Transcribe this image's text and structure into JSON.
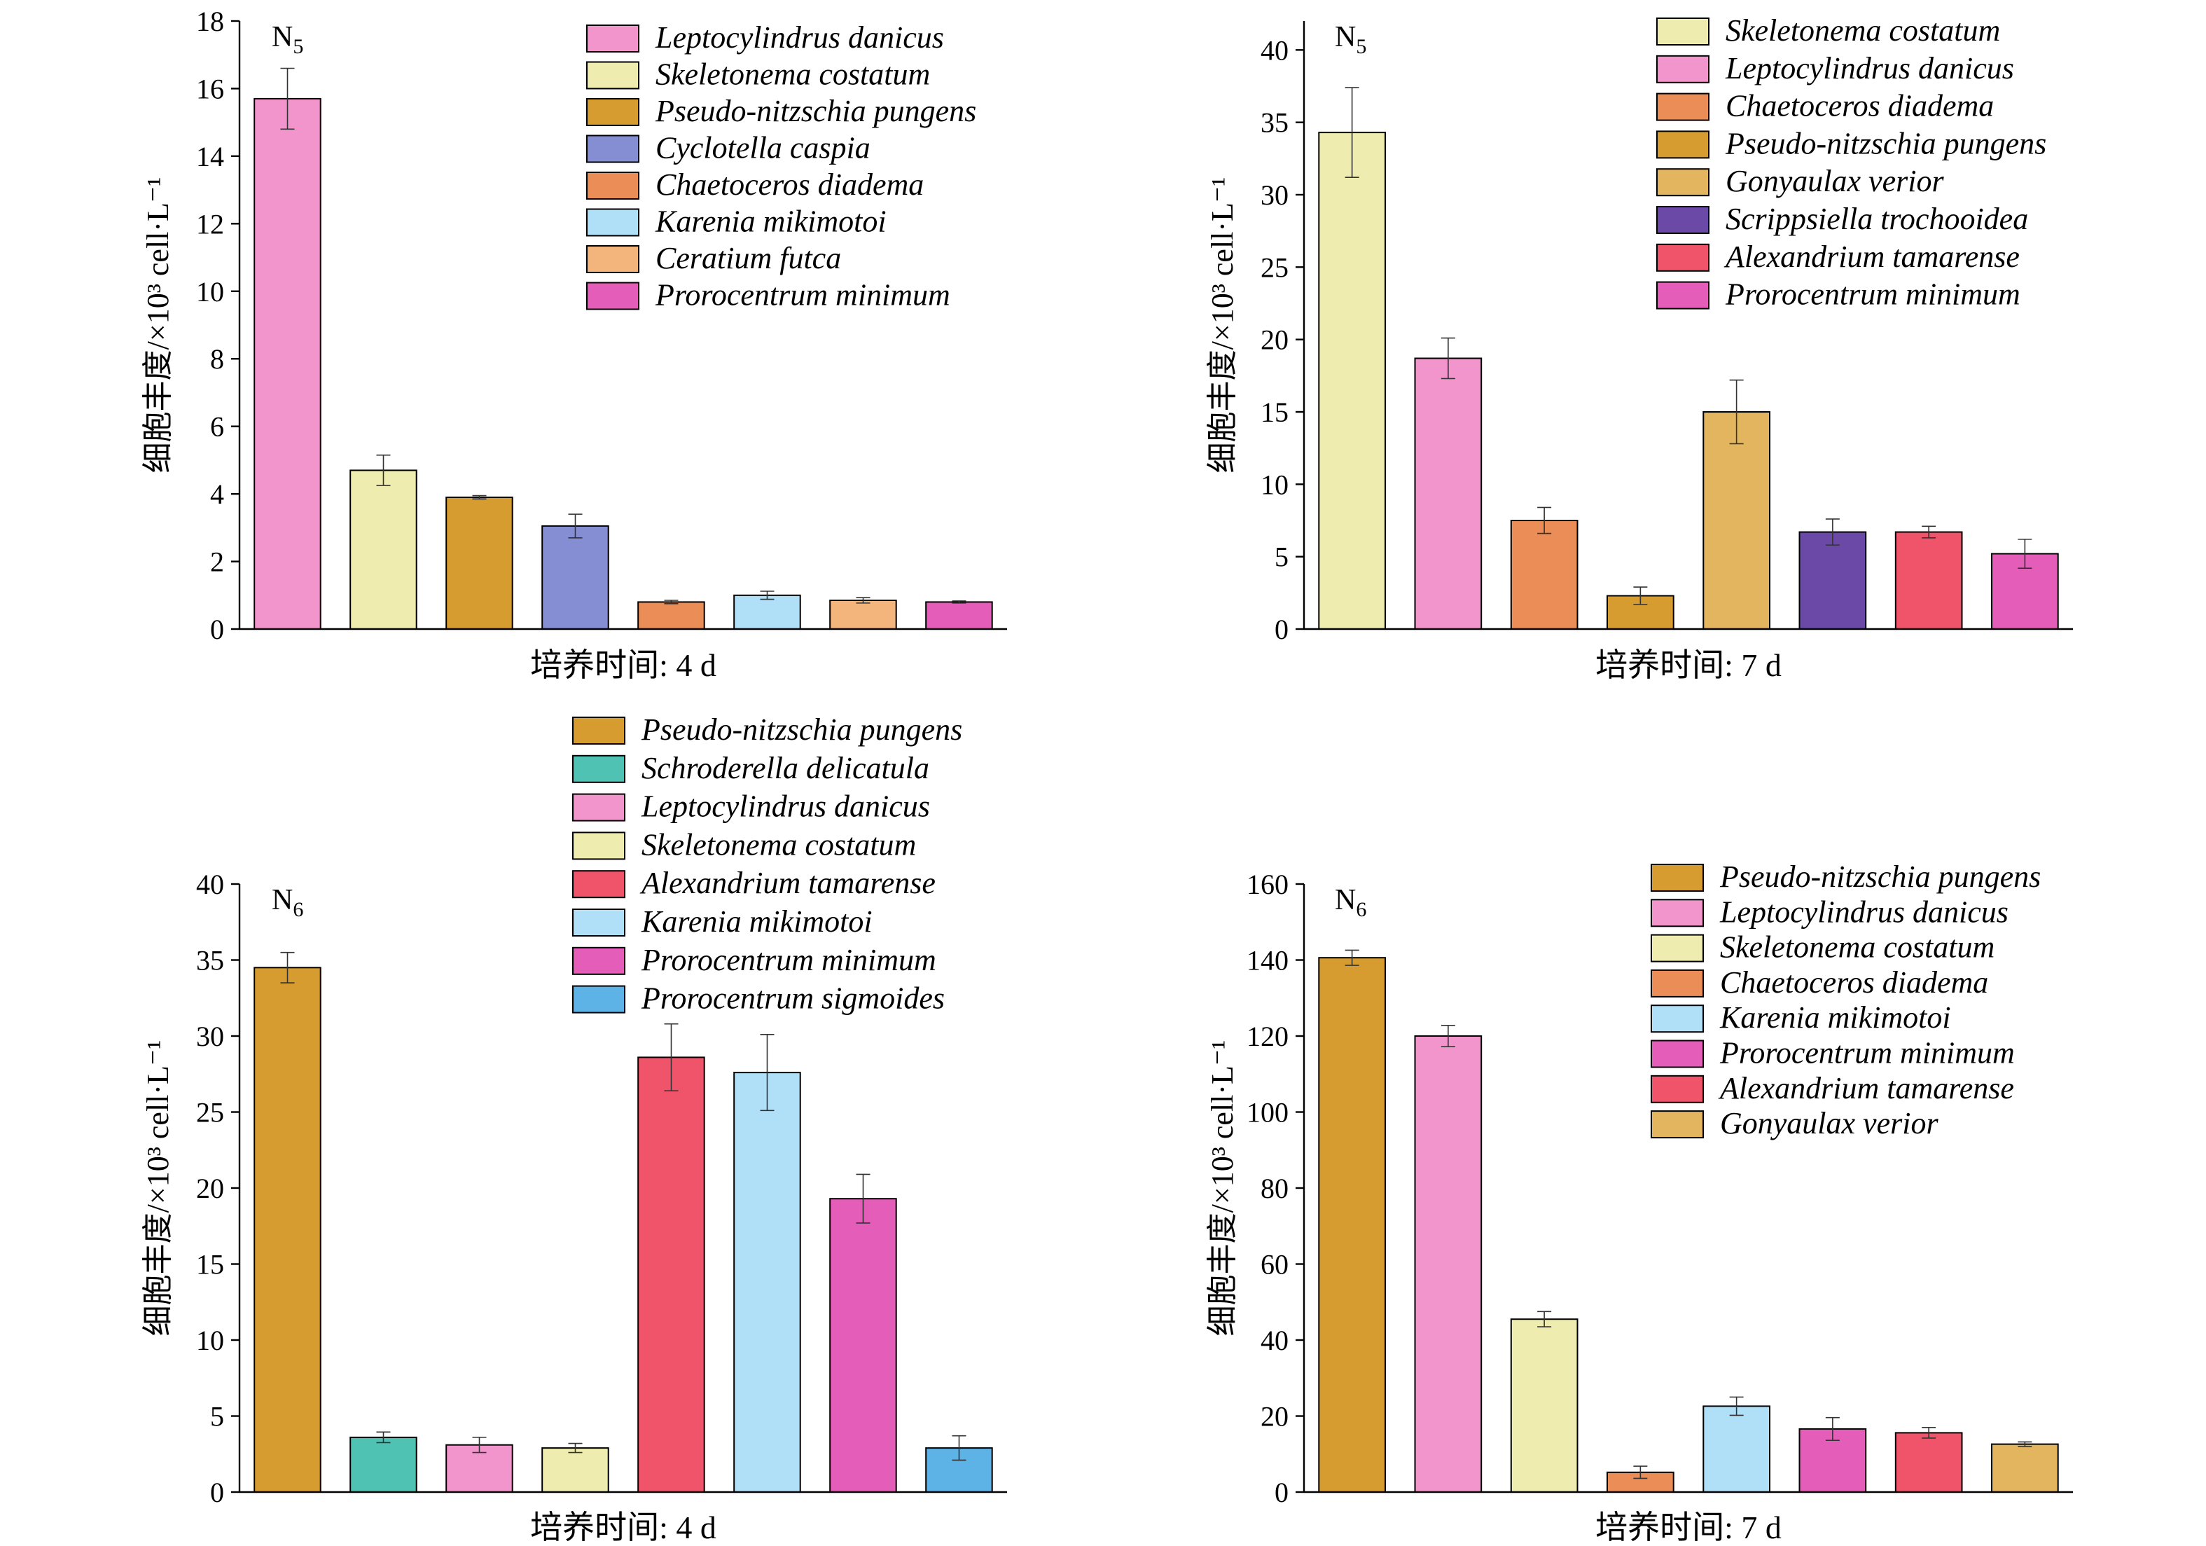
{
  "figure": {
    "ylabel": "细胞丰度/×10³ cell·L⁻¹",
    "species_colors": {
      "Leptocylindrus danicus": "#f395cd",
      "Skeletonema costatum": "#eeedaf",
      "Pseudo-nitzschia pungens": "#d69c2f",
      "Cyclotella caspia": "#858dd3",
      "Chaetoceros diadema": "#ea8d56",
      "Karenia mikimotoi": "#b0e0f7",
      "Ceratium futca": "#f4b57d",
      "Prorocentrum minimum": "#e45db8",
      "Gonyaulax verior": "#e2b55e",
      "Scrippsiella trochooidea": "#6a4aa6",
      "Alexandrium tamarense": "#f0546a",
      "Schroderella delicatula": "#4fc2b3",
      "Prorocentrum sigmoides": "#5db3e6"
    }
  },
  "chart_data": [
    {
      "type": "bar",
      "panel": "N5",
      "xlabel": "培养时间: 4 d",
      "ylabel": "细胞丰度/×10³ cell·L⁻¹",
      "ylim": [
        0,
        18
      ],
      "yticks": [
        0,
        2,
        4,
        6,
        8,
        10,
        12,
        14,
        16,
        18
      ],
      "legend_position": "top-right",
      "categories": [
        "Leptocylindrus danicus",
        "Skeletonema costatum",
        "Pseudo-nitzschia pungens",
        "Cyclotella caspia",
        "Chaetoceros diadema",
        "Karenia mikimotoi",
        "Ceratium futca",
        "Prorocentrum minimum"
      ],
      "values": [
        15.7,
        4.7,
        3.9,
        3.05,
        0.8,
        1.0,
        0.85,
        0.8
      ],
      "errors": [
        0.9,
        0.45,
        0.05,
        0.35,
        0.05,
        0.12,
        0.08,
        0.03
      ]
    },
    {
      "type": "bar",
      "panel": "N5",
      "xlabel": "培养时间: 7 d",
      "ylabel": "细胞丰度/×10³ cell·L⁻¹",
      "ylim": [
        0,
        42
      ],
      "yticks": [
        0,
        5,
        10,
        15,
        20,
        25,
        30,
        35,
        40
      ],
      "legend_position": "top-right",
      "categories": [
        "Skeletonema costatum",
        "Leptocylindrus danicus",
        "Chaetoceros diadema",
        "Pseudo-nitzschia pungens",
        "Gonyaulax verior",
        "Scrippsiella trochooidea",
        "Alexandrium tamarense",
        "Prorocentrum minimum"
      ],
      "values": [
        34.3,
        18.7,
        7.5,
        2.3,
        15.0,
        6.7,
        6.7,
        5.2
      ],
      "errors": [
        3.1,
        1.4,
        0.9,
        0.6,
        2.2,
        0.9,
        0.4,
        1.0
      ]
    },
    {
      "type": "bar",
      "panel": "N6",
      "xlabel": "培养时间: 4 d",
      "ylabel": "细胞丰度/×10³ cell·L⁻¹",
      "ylim": [
        0,
        40
      ],
      "yticks": [
        0,
        5,
        10,
        15,
        20,
        25,
        30,
        35,
        40
      ],
      "legend_position": "top-right",
      "categories": [
        "Pseudo-nitzschia pungens",
        "Schroderella delicatula",
        "Leptocylindrus danicus",
        "Skeletonema costatum",
        "Alexandrium tamarense",
        "Karenia mikimotoi",
        "Prorocentrum minimum",
        "Prorocentrum sigmoides"
      ],
      "values": [
        34.5,
        3.6,
        3.1,
        2.9,
        28.6,
        27.6,
        19.3,
        2.9
      ],
      "errors": [
        1.0,
        0.35,
        0.5,
        0.3,
        2.2,
        2.5,
        1.6,
        0.8
      ]
    },
    {
      "type": "bar",
      "panel": "N6",
      "xlabel": "培养时间: 7 d",
      "ylabel": "细胞丰度/×10³ cell·L⁻¹",
      "ylim": [
        0,
        160
      ],
      "yticks": [
        0,
        20,
        40,
        60,
        80,
        100,
        120,
        140,
        160
      ],
      "legend_position": "top-right",
      "categories": [
        "Pseudo-nitzschia pungens",
        "Leptocylindrus danicus",
        "Skeletonema costatum",
        "Chaetoceros diadema",
        "Karenia mikimotoi",
        "Prorocentrum minimum",
        "Alexandrium tamarense",
        "Gonyaulax verior"
      ],
      "values": [
        140.6,
        120.0,
        45.5,
        5.2,
        22.6,
        16.6,
        15.6,
        12.6
      ],
      "errors": [
        2.0,
        2.8,
        2.0,
        1.6,
        2.4,
        3.0,
        1.4,
        0.6
      ]
    }
  ]
}
